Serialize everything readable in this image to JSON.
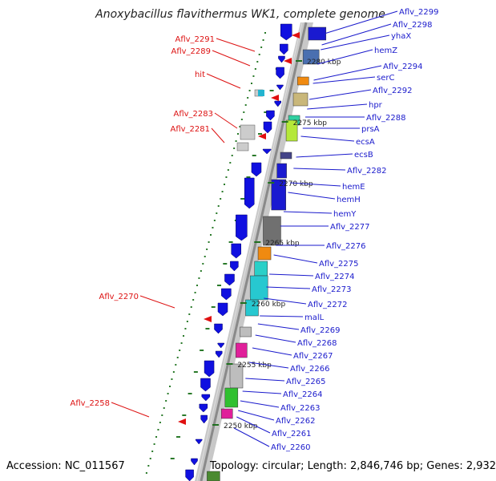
{
  "title": "Anoxybacillus flavithermus WK1, complete genome",
  "footer": {
    "accession": "Accession: NC_011567",
    "topology": "Topology: circular; Length: 2,846,746 bp; Genes: 2,932"
  },
  "kbp_labels": [
    "2280 kbp",
    "2275 kbp",
    "2270 kbp",
    "2265 kbp",
    "2260 kbp",
    "2255 kbp",
    "2250 kbp"
  ],
  "right_labels": [
    "Aflv_2299",
    "Aflv_2298",
    "yhaX",
    "hemZ",
    "Aflv_2294",
    "serC",
    "Aflv_2292",
    "hpr",
    "Aflv_2288",
    "prsA",
    "ecsA",
    "ecsB",
    "Aflv_2282",
    "hemE",
    "hemH",
    "hemY",
    "Aflv_2277",
    "Aflv_2276",
    "Aflv_2275",
    "Aflv_2274",
    "Aflv_2273",
    "Aflv_2272",
    "malL",
    "Aflv_2269",
    "Aflv_2268",
    "Aflv_2267",
    "Aflv_2266",
    "Aflv_2265",
    "Aflv_2264",
    "Aflv_2263",
    "Aflv_2262",
    "Aflv_2261",
    "Aflv_2260"
  ],
  "left_labels": [
    "Aflv_2291",
    "Aflv_2289",
    "hit",
    "Aflv_2283",
    "Aflv_2281",
    "Aflv_2270",
    "Aflv_2258"
  ],
  "colors": {
    "forward_gene": "#1010e0",
    "reverse_gene": "#e01010",
    "label_right": "#1a1acc",
    "label_left": "#dd1111",
    "backbone": "#9a9a9a",
    "orf_marks": "#2a7a2a"
  }
}
